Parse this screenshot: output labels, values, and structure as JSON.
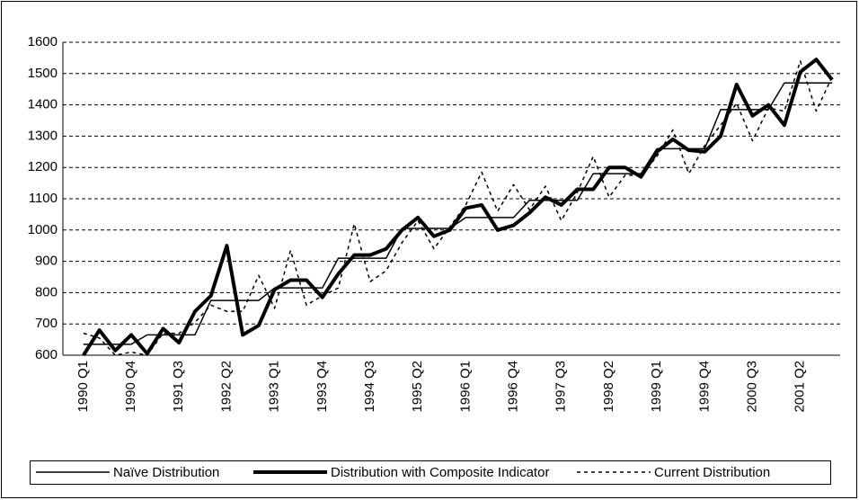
{
  "chart_data": {
    "type": "line",
    "categories": [
      "1990 Q1",
      null,
      null,
      "1990 Q4",
      null,
      null,
      "1991 Q3",
      null,
      null,
      "1992 Q2",
      null,
      null,
      "1993 Q1",
      null,
      null,
      "1993 Q4",
      null,
      null,
      "1994 Q3",
      null,
      null,
      "1995 Q2",
      null,
      null,
      "1996 Q1",
      null,
      null,
      "1996 Q4",
      null,
      null,
      "1997 Q3",
      null,
      null,
      "1998 Q2",
      null,
      null,
      "1999 Q1",
      null,
      null,
      "1999 Q4",
      null,
      null,
      "2000 Q3",
      null,
      null,
      "2001 Q2",
      null,
      null
    ],
    "series": [
      {
        "name": "Naïve Distribution",
        "color": "#000000",
        "line_width": 1.5,
        "dashed": false,
        "values": [
          635,
          635,
          635,
          635,
          665,
          665,
          665,
          665,
          775,
          775,
          775,
          775,
          815,
          815,
          815,
          815,
          910,
          910,
          910,
          910,
          1005,
          1005,
          1005,
          1005,
          1040,
          1040,
          1040,
          1040,
          1095,
          1095,
          1095,
          1095,
          1180,
          1180,
          1180,
          1180,
          1260,
          1260,
          1260,
          1260,
          1385,
          1385,
          1385,
          1385,
          1470,
          1470,
          1470,
          1470
        ]
      },
      {
        "name": "Distribution with Composite Indicator",
        "color": "#000000",
        "line_width": 4,
        "dashed": false,
        "values": [
          600,
          680,
          615,
          665,
          605,
          685,
          640,
          740,
          790,
          950,
          665,
          695,
          810,
          840,
          840,
          785,
          860,
          920,
          920,
          940,
          1000,
          1040,
          980,
          1000,
          1070,
          1080,
          1000,
          1015,
          1055,
          1105,
          1080,
          1130,
          1130,
          1200,
          1200,
          1170,
          1250,
          1290,
          1255,
          1250,
          1300,
          1465,
          1365,
          1400,
          1335,
          1505,
          1545,
          1480
        ]
      },
      {
        "name": "Current Distribution",
        "color": "#000000",
        "line_width": 1.5,
        "dashed": true,
        "values": [
          670,
          655,
          600,
          610,
          600,
          670,
          670,
          705,
          760,
          740,
          740,
          855,
          750,
          935,
          760,
          790,
          815,
          1020,
          835,
          870,
          960,
          1030,
          940,
          1010,
          1080,
          1185,
          1060,
          1145,
          1065,
          1140,
          1030,
          1120,
          1235,
          1105,
          1175,
          1175,
          1235,
          1320,
          1180,
          1270,
          1335,
          1405,
          1285,
          1390,
          1380,
          1540,
          1380,
          1490
        ]
      }
    ],
    "ylim": [
      600,
      1600
    ],
    "yticks": [
      600,
      700,
      800,
      900,
      1000,
      1100,
      1200,
      1300,
      1400,
      1500,
      1600
    ],
    "grid": true,
    "legend": "bottom"
  }
}
